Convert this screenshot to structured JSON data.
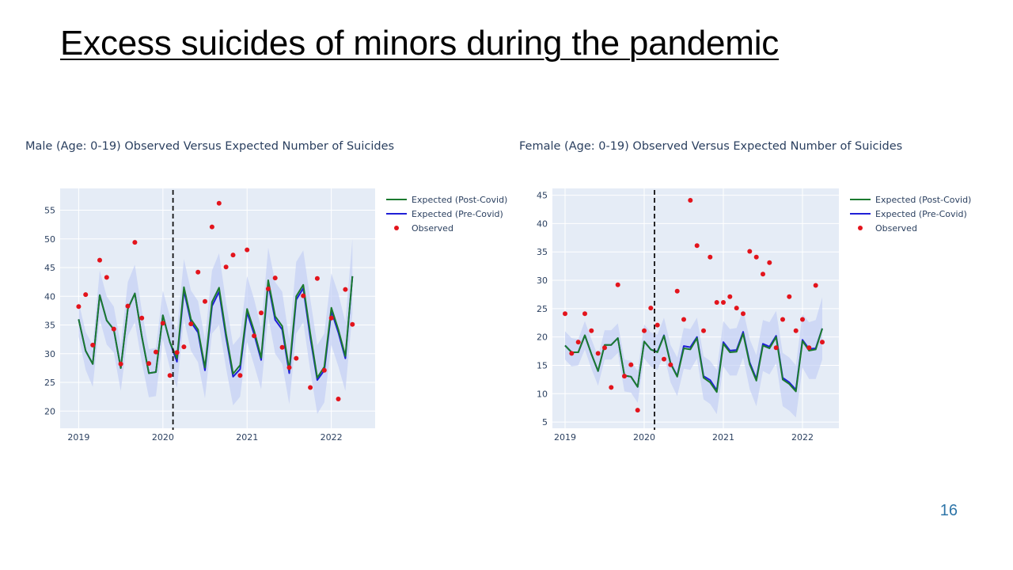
{
  "slide": {
    "title": "Excess suicides of minors during the pandemic",
    "page_number": "16"
  },
  "colors": {
    "post_covid": "#1b7a2e",
    "pre_covid": "#1f1fd6",
    "observed": "#e3141c",
    "plot_bg": "#e5ecf6",
    "band": "#c5d0f5",
    "divider": "#111111"
  },
  "chart_data": [
    {
      "type": "line",
      "title": "Male (Age: 0-19) Observed Versus Expected Number of Suicides",
      "xlim": [
        2018.78,
        2022.52
      ],
      "ylim": [
        17,
        58.8
      ],
      "x_ticks": [
        2019,
        2020,
        2021,
        2022
      ],
      "x_tick_labels": [
        "2019",
        "2020",
        "2021",
        "2022"
      ],
      "y_ticks": [
        20,
        25,
        30,
        35,
        40,
        45,
        50,
        55
      ],
      "covid_divider_x": 2020.12,
      "grid": true,
      "legend_position": "right",
      "legend": [
        "Expected (Post-Covid)",
        "Expected (Pre-Covid)",
        "Observed"
      ],
      "x": [
        2019.0,
        2019.083,
        2019.167,
        2019.25,
        2019.333,
        2019.417,
        2019.5,
        2019.583,
        2019.667,
        2019.75,
        2019.833,
        2019.917,
        2020.0,
        2020.083,
        2020.167,
        2020.25,
        2020.333,
        2020.417,
        2020.5,
        2020.583,
        2020.667,
        2020.75,
        2020.833,
        2020.917,
        2021.0,
        2021.083,
        2021.167,
        2021.25,
        2021.333,
        2021.417,
        2021.5,
        2021.583,
        2021.667,
        2021.75,
        2021.833,
        2021.917,
        2022.0,
        2022.083,
        2022.167,
        2022.25
      ],
      "series": [
        {
          "name": "Expected (Post-Covid)",
          "values": [
            36,
            30.5,
            28.2,
            40.2,
            35.8,
            34.2,
            27.5,
            37.8,
            40.5,
            33,
            26.6,
            26.8,
            36.7,
            32,
            29.2,
            41.6,
            36,
            34.2,
            27.6,
            39,
            41.5,
            33.5,
            26.5,
            28,
            37.8,
            34,
            29.3,
            42.8,
            36.5,
            34.8,
            27.2,
            40,
            42,
            33.5,
            25.8,
            27.7,
            38,
            34.2,
            29.6,
            43.5
          ]
        },
        {
          "name": "Expected (Pre-Covid)",
          "values": [
            36,
            30.5,
            28.2,
            40.2,
            35.8,
            34.2,
            27.5,
            37.8,
            40.5,
            33,
            26.6,
            26.8,
            36.7,
            32,
            28.6,
            41,
            35.5,
            33.7,
            27.1,
            38.3,
            40.8,
            32.9,
            26,
            27.3,
            37.2,
            33.4,
            28.9,
            42.2,
            35.9,
            34.2,
            26.6,
            39.4,
            41.4,
            32.8,
            25.4,
            27.1,
            37.4,
            33.7,
            29.2,
            43.5
          ]
        }
      ],
      "band_upper": [
        39,
        33.8,
        31.5,
        44.5,
        40,
        38.2,
        31.5,
        42.5,
        45.5,
        37.5,
        30.8,
        31,
        41,
        36.5,
        34,
        46.5,
        41,
        39.2,
        32.5,
        44.5,
        47.5,
        39,
        31.5,
        33,
        43.5,
        39.5,
        34.5,
        48.5,
        42.5,
        40.8,
        32.5,
        46,
        48,
        39.5,
        31.5,
        33.5,
        44,
        40.5,
        35.5,
        50
      ],
      "band_lower": [
        33,
        27.2,
        24.2,
        36,
        31.6,
        30.2,
        23.5,
        33.1,
        35.5,
        28.5,
        22.4,
        22.6,
        32.4,
        27.5,
        24,
        36,
        30.5,
        28.5,
        22.2,
        33.5,
        35,
        27.5,
        21,
        22.5,
        32,
        28,
        23.8,
        36.5,
        30,
        28.2,
        21.2,
        33.5,
        35.5,
        27,
        19.5,
        21.5,
        31.5,
        27.8,
        23.5,
        37
      ],
      "observed": {
        "x": [
          2019.0,
          2019.083,
          2019.167,
          2019.25,
          2019.333,
          2019.417,
          2019.5,
          2019.583,
          2019.667,
          2019.75,
          2019.833,
          2019.917,
          2020.0,
          2020.083,
          2020.167,
          2020.25,
          2020.333,
          2020.417,
          2020.5,
          2020.583,
          2020.667,
          2020.75,
          2020.833,
          2020.917,
          2021.0,
          2021.083,
          2021.167,
          2021.25,
          2021.333,
          2021.417,
          2021.5,
          2021.583,
          2021.667,
          2021.75,
          2021.833,
          2021.917,
          2022.0,
          2022.083,
          2022.167,
          2022.25
        ],
        "values": [
          38.2,
          40.3,
          31.5,
          46.3,
          43.3,
          34.3,
          28.2,
          38.3,
          49.4,
          36.2,
          28.3,
          30.3,
          35.3,
          26.2,
          30.2,
          31.2,
          35.2,
          44.2,
          39.1,
          52.1,
          56.2,
          45.1,
          47.2,
          26.2,
          48.1,
          33.1,
          37.1,
          41.3,
          43.2,
          31.1,
          27.6,
          29.2,
          40.1,
          24.1,
          43.1,
          27.1,
          36.2,
          22.1,
          41.2,
          35.1
        ]
      }
    },
    {
      "type": "line",
      "title": "Female (Age: 0-19) Observed Versus Expected Number of Suicides",
      "xlim": [
        2018.84,
        2022.46
      ],
      "ylim": [
        3.9,
        46.2
      ],
      "x_ticks": [
        2019,
        2020,
        2021,
        2022
      ],
      "x_tick_labels": [
        "2019",
        "2020",
        "2021",
        "2022"
      ],
      "y_ticks": [
        5,
        10,
        15,
        20,
        25,
        30,
        35,
        40,
        45
      ],
      "covid_divider_x": 2020.13,
      "grid": true,
      "legend_position": "right",
      "legend": [
        "Expected (Post-Covid)",
        "Expected (Pre-Covid)",
        "Observed"
      ],
      "x": [
        2019.0,
        2019.083,
        2019.167,
        2019.25,
        2019.333,
        2019.417,
        2019.5,
        2019.583,
        2019.667,
        2019.75,
        2019.833,
        2019.917,
        2020.0,
        2020.083,
        2020.167,
        2020.25,
        2020.333,
        2020.417,
        2020.5,
        2020.583,
        2020.667,
        2020.75,
        2020.833,
        2020.917,
        2021.0,
        2021.083,
        2021.167,
        2021.25,
        2021.333,
        2021.417,
        2021.5,
        2021.583,
        2021.667,
        2021.75,
        2021.833,
        2021.917,
        2022.0,
        2022.083,
        2022.167,
        2022.25
      ],
      "series": [
        {
          "name": "Expected (Post-Covid)",
          "values": [
            18.5,
            17.3,
            17.3,
            20.3,
            17,
            14,
            18.6,
            18.6,
            19.8,
            13.2,
            13,
            11.2,
            19.2,
            17.8,
            17.3,
            20.2,
            15.3,
            13,
            18,
            17.8,
            19.8,
            12.8,
            12,
            10.3,
            18.8,
            17.3,
            17.4,
            20.6,
            15.2,
            12.3,
            18.5,
            18,
            20,
            12.5,
            11.7,
            10.4,
            19.3,
            17.6,
            17.8,
            21.5
          ]
        },
        {
          "name": "Expected (Pre-Covid)",
          "values": [
            18.5,
            17.3,
            17.3,
            20.3,
            17,
            14,
            18.6,
            18.6,
            19.8,
            13.2,
            13,
            11.2,
            19.2,
            17.8,
            17.4,
            20.3,
            15.4,
            13.1,
            18.4,
            18.2,
            20,
            13.1,
            12.4,
            10.6,
            19.1,
            17.6,
            17.7,
            20.9,
            15.5,
            12.6,
            18.8,
            18.3,
            20.2,
            12.8,
            12,
            10.7,
            19.5,
            17.9,
            18,
            21.5
          ]
        }
      ],
      "band_upper": [
        21,
        19.8,
        19.6,
        22.8,
        19.6,
        16.6,
        21.2,
        21.2,
        22.4,
        16,
        15.8,
        14,
        22.2,
        20.8,
        20.4,
        23.4,
        18.6,
        16.4,
        21.6,
        21.4,
        23.4,
        16.6,
        15.8,
        14.2,
        22.8,
        21.4,
        21.6,
        24.8,
        19.6,
        16.8,
        23,
        22.6,
        24.6,
        17.2,
        16.4,
        15,
        24,
        22.6,
        23,
        27
      ],
      "band_lower": [
        16,
        14.8,
        15,
        17.8,
        14.4,
        11.4,
        16,
        16,
        17.2,
        10.4,
        10.2,
        8.4,
        16.2,
        14.8,
        14.2,
        17,
        12,
        9.6,
        14.4,
        14.2,
        16.2,
        9,
        8.2,
        6.4,
        14.8,
        13.2,
        13.2,
        16.4,
        10.8,
        7.8,
        14,
        13.4,
        15.4,
        7.8,
        7,
        5.8,
        14.6,
        12.6,
        12.6,
        16
      ],
      "observed": {
        "x": [
          2019.0,
          2019.083,
          2019.167,
          2019.25,
          2019.333,
          2019.417,
          2019.5,
          2019.583,
          2019.667,
          2019.75,
          2019.833,
          2019.917,
          2020.0,
          2020.083,
          2020.167,
          2020.25,
          2020.333,
          2020.417,
          2020.5,
          2020.583,
          2020.667,
          2020.75,
          2020.833,
          2020.917,
          2021.0,
          2021.083,
          2021.167,
          2021.25,
          2021.333,
          2021.417,
          2021.5,
          2021.583,
          2021.667,
          2021.75,
          2021.833,
          2021.917,
          2022.0,
          2022.083,
          2022.167,
          2022.25
        ],
        "values": [
          24.1,
          17.1,
          19.1,
          24.1,
          21.1,
          17.1,
          18.1,
          11.1,
          29.2,
          13.1,
          15.1,
          7.1,
          21.1,
          25.1,
          22.1,
          16.1,
          15.1,
          28.1,
          23.1,
          44.1,
          36.1,
          21.1,
          34.1,
          26.1,
          26.1,
          27.1,
          25.1,
          24.1,
          35.1,
          34.1,
          31.1,
          33.1,
          18.1,
          23.1,
          27.1,
          21.1,
          23.1,
          18.1,
          29.1,
          19.1
        ]
      }
    }
  ]
}
